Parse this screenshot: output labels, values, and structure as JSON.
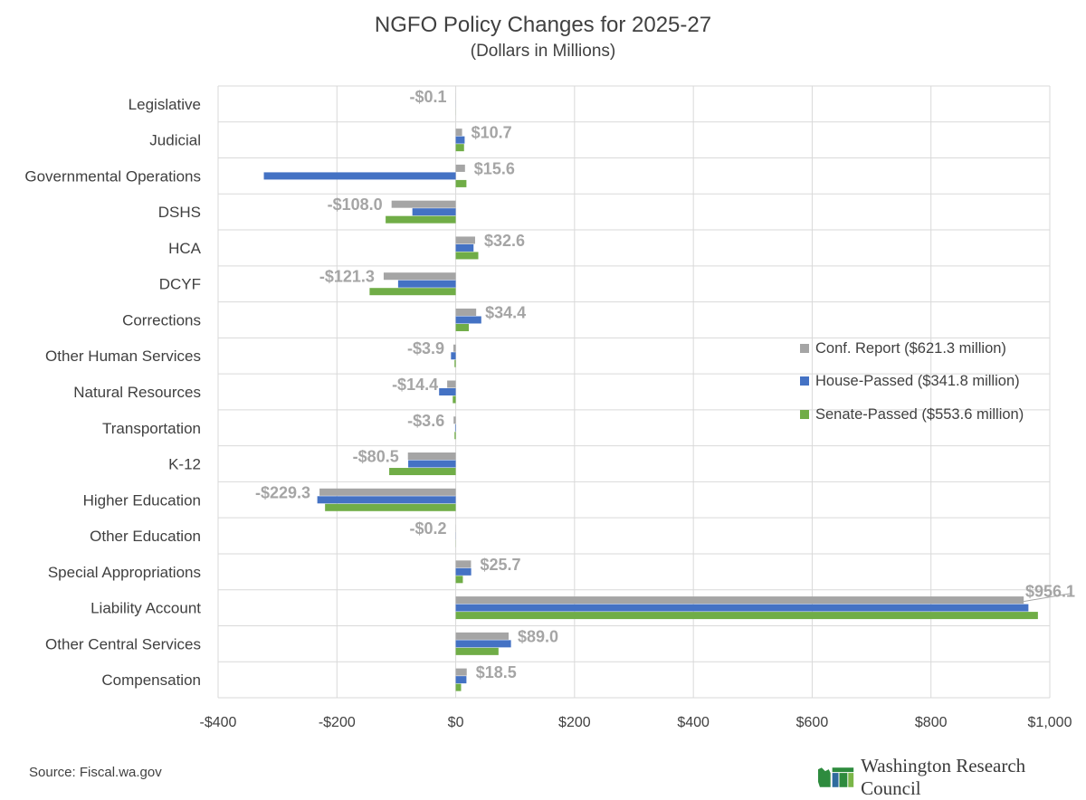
{
  "chart_data": {
    "type": "bar",
    "orientation": "horizontal",
    "title": "NGFO Policy Changes for 2025-27",
    "subtitle": "(Dollars in Millions)",
    "categories": [
      "Legislative",
      "Judicial",
      "Governmental Operations",
      "DSHS",
      "HCA",
      "DCYF",
      "Corrections",
      "Other Human Services",
      "Natural Resources",
      "Transportation",
      "K-12",
      "Higher Education",
      "Other Education",
      "Special Appropriations",
      "Liability Account",
      "Other Central Services",
      "Compensation"
    ],
    "series": [
      {
        "name": "Conf. Report ($621.3 million)",
        "color": "#a5a5a5",
        "values": [
          -0.1,
          10.7,
          15.6,
          -108.0,
          32.6,
          -121.3,
          34.4,
          -3.9,
          -14.4,
          -3.6,
          -80.5,
          -229.3,
          -0.2,
          25.7,
          956.1,
          89.0,
          18.5
        ]
      },
      {
        "name": "House-Passed ($341.8 million)",
        "color": "#4472c4",
        "values": [
          -0.1,
          15,
          -323,
          -73,
          30,
          -97,
          43,
          -8,
          -28,
          -1,
          -80,
          -233,
          -0.2,
          26,
          964,
          93,
          18
        ]
      },
      {
        "name": "Senate-Passed ($553.6 million)",
        "color": "#70ad47",
        "values": [
          -0.1,
          14,
          18,
          -118,
          38,
          -145,
          22,
          -2,
          -5,
          -2,
          -112,
          -220,
          -0.2,
          12,
          980,
          72,
          9
        ]
      }
    ],
    "data_labels": [
      "-$0.1",
      "$10.7",
      "$15.6",
      "-$108.0",
      "$32.6",
      "-$121.3",
      "$34.4",
      "-$3.9",
      "-$14.4",
      "-$3.6",
      "-$80.5",
      "-$229.3",
      "-$0.2",
      "$25.7",
      "$956.1",
      "$89.0",
      "$18.5"
    ],
    "x_ticks": [
      -400,
      -200,
      0,
      200,
      400,
      600,
      800,
      1000
    ],
    "x_tick_labels": [
      "-$400",
      "-$200",
      "$0",
      "$200",
      "$400",
      "$600",
      "$800",
      "$1,000"
    ],
    "xlim": [
      -400,
      1000
    ],
    "xlabel": "",
    "ylabel": "",
    "grid": true,
    "legend_position": "right"
  },
  "footer": {
    "source": "Source: Fiscal.wa.gov",
    "logo_text": "Washington Research Council"
  }
}
